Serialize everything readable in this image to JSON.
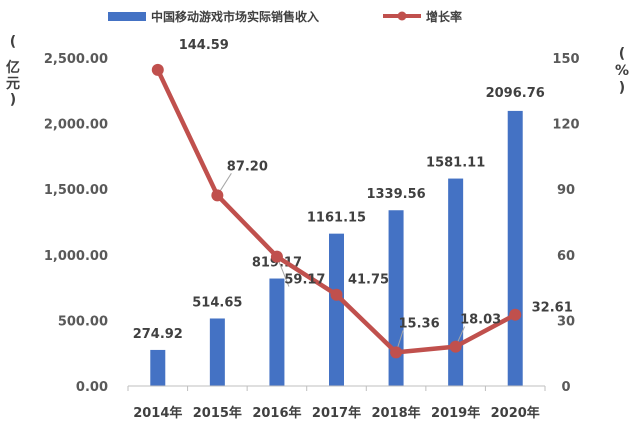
{
  "chart_data": {
    "type": "bar+line",
    "categories": [
      "2014年",
      "2015年",
      "2016年",
      "2017年",
      "2018年",
      "2019年",
      "2020年"
    ],
    "series": [
      {
        "name": "中国移动游戏市场实际销售收入",
        "type": "bar",
        "axis": "left",
        "color": "#4472C4",
        "values": [
          274.92,
          514.65,
          819.17,
          1161.15,
          1339.56,
          1581.11,
          2096.76
        ],
        "labels": [
          "274.92",
          "514.65",
          "819.17",
          "1161.15",
          "1339.56",
          "1581.11",
          "2096.76"
        ]
      },
      {
        "name": "增长率",
        "type": "line",
        "axis": "right",
        "color": "#C0504D",
        "values": [
          144.59,
          87.2,
          59.17,
          41.75,
          15.36,
          18.03,
          32.61
        ],
        "labels": [
          "144.59",
          "87.20",
          "59.17",
          "41.75",
          "15.36",
          "18.03",
          "32.61"
        ]
      }
    ],
    "y_left": {
      "unit": "(亿元)",
      "unit_chars": [
        "(",
        "亿",
        "元",
        ")"
      ],
      "ylim": [
        0,
        2500
      ],
      "ticks": [
        0,
        500,
        1000,
        1500,
        2000,
        2500
      ],
      "tick_labels": [
        "0.00",
        "500.00",
        "1,000.00",
        "1,500.00",
        "2,000.00",
        "2,500.00"
      ]
    },
    "y_right": {
      "unit": "(%)",
      "unit_chars": [
        "(",
        "%",
        ")"
      ],
      "ylim": [
        0,
        150
      ],
      "ticks": [
        0,
        30,
        60,
        90,
        120,
        150
      ],
      "tick_labels": [
        "0",
        "30",
        "60",
        "90",
        "120",
        "150"
      ]
    },
    "grid": false,
    "legend": "top-center"
  }
}
